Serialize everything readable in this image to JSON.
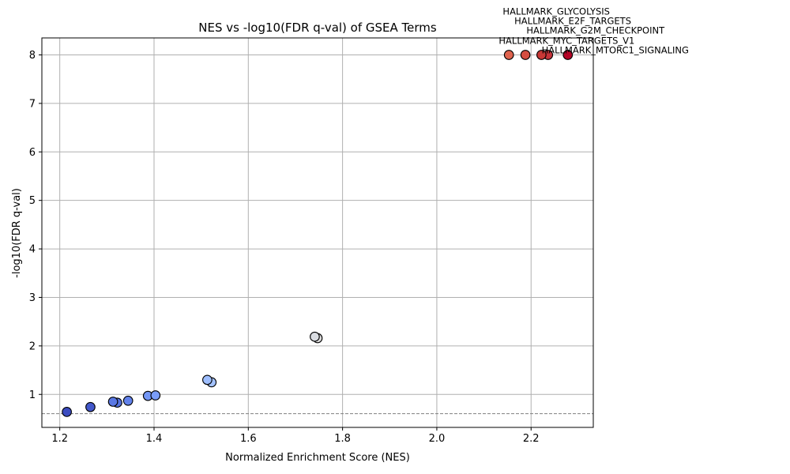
{
  "chart_data": {
    "type": "scatter",
    "title": "NES vs -log10(FDR q-val) of GSEA Terms",
    "xlabel": "Normalized Enrichment Score (NES)",
    "ylabel": "-log10(FDR q-val)",
    "xlim": [
      1.162,
      2.332
    ],
    "ylim": [
      0.32,
      8.35
    ],
    "xticks": [
      1.2,
      1.4,
      1.6,
      1.8,
      2.0,
      2.2
    ],
    "xtick_labels": [
      "1.2",
      "1.4",
      "1.6",
      "1.8",
      "2.0",
      "2.2"
    ],
    "yticks": [
      1,
      2,
      3,
      4,
      5,
      6,
      7,
      8
    ],
    "ytick_labels": [
      "1",
      "2",
      "3",
      "4",
      "5",
      "6",
      "7",
      "8"
    ],
    "grid": true,
    "threshold_line": {
      "y": 0.602,
      "style": "dashed",
      "color": "#808080"
    },
    "colormap": "coolwarm",
    "points": [
      {
        "x": 1.215,
        "y": 0.64,
        "color": "#3b4cc0"
      },
      {
        "x": 1.265,
        "y": 0.74,
        "color": "#4358cb"
      },
      {
        "x": 1.322,
        "y": 0.83,
        "color": "#5470de"
      },
      {
        "x": 1.313,
        "y": 0.85,
        "color": "#5a78e4"
      },
      {
        "x": 1.345,
        "y": 0.87,
        "color": "#6282ea"
      },
      {
        "x": 1.387,
        "y": 0.97,
        "color": "#7396f5"
      },
      {
        "x": 1.403,
        "y": 0.98,
        "color": "#7a9df8"
      },
      {
        "x": 1.522,
        "y": 1.25,
        "color": "#a3c2fe"
      },
      {
        "x": 1.513,
        "y": 1.3,
        "color": "#9ebeff"
      },
      {
        "x": 1.747,
        "y": 2.16,
        "color": "#dddcdc"
      },
      {
        "x": 1.741,
        "y": 2.19,
        "color": "#d9dce1"
      },
      {
        "x": 2.153,
        "y": 8.0,
        "color": "#df634e",
        "label": "HALLMARK_GLYCOLYSIS"
      },
      {
        "x": 2.188,
        "y": 8.0,
        "color": "#d44e41",
        "label": "HALLMARK_E2F_TARGETS"
      },
      {
        "x": 2.236,
        "y": 8.0,
        "color": "#c5333a",
        "label": "HALLMARK_G2M_CHECKPOINT"
      },
      {
        "x": 2.222,
        "y": 8.0,
        "color": "#c83836",
        "label": "HALLMARK_MYC_TARGETS_V1"
      },
      {
        "x": 2.278,
        "y": 8.0,
        "color": "#b40426",
        "label": "HALLMARK_MTORC1_SIGNALING"
      }
    ]
  }
}
